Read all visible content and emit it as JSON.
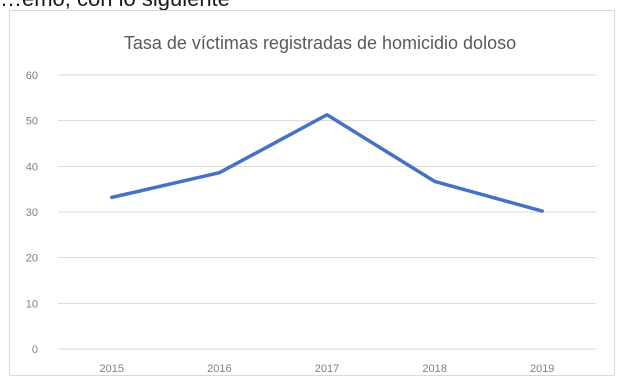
{
  "top_text": "…emo, con lo siguiente",
  "chart_data": {
    "type": "line",
    "title": "Tasa de víctimas registradas de homicidio doloso",
    "xlabel": "",
    "ylabel": "",
    "categories": [
      "2015",
      "2016",
      "2017",
      "2018",
      "2019"
    ],
    "series": [
      {
        "values": [
          33.2,
          38.6,
          51.3,
          36.7,
          30.2
        ]
      }
    ],
    "ylim": [
      0,
      60
    ],
    "yticks": [
      "0",
      "10",
      "20",
      "30",
      "40",
      "50",
      "60"
    ],
    "grid": true,
    "legend": "none",
    "line_color": "#4472c4"
  }
}
